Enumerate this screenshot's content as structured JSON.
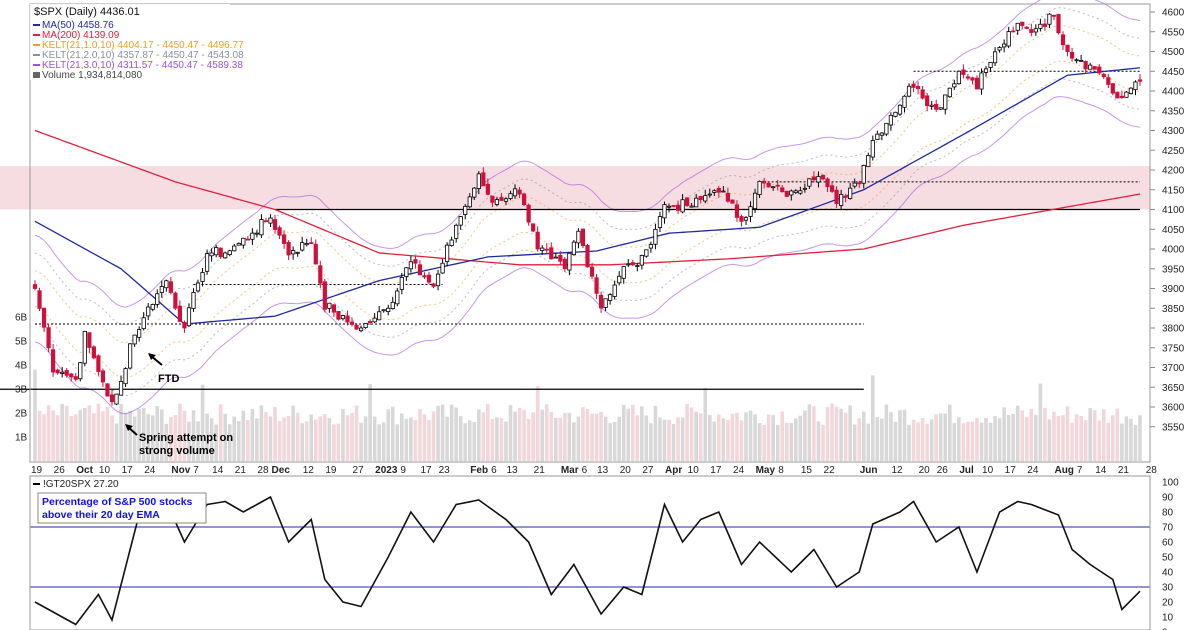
{
  "legend": {
    "symbol": "$SPX (Daily) 4436.01",
    "ma50": "MA(50) 4458.76",
    "ma200": "MA(200) 4139.09",
    "kelt1": "KELT(21,1.0,10) 4404.17 - 4450.47 - 4496.77",
    "kelt2": "KELT(21,2.0,10) 4357.87 - 4450.47 - 4543.08",
    "kelt3": "KELT(21,3.0,10) 4311.57 - 4450.47 - 4589.38",
    "volume": "Volume 1,934,814,080"
  },
  "colors": {
    "ma50": "#1f2a9c",
    "ma200": "#e0203c",
    "kelt1": "#e8a020",
    "kelt2": "#8a8f99",
    "kelt3": "#a050e0",
    "down": "#d0103a",
    "zone": "#f6dde2",
    "indicator_box": "#1010ee"
  },
  "annotations": {
    "ftd": "FTD",
    "spring_1": "Spring attempt on",
    "spring_2": "strong volume"
  },
  "indicator": {
    "legend": "!GT20SPX 27.20",
    "note_1": "Percentage of S&P 500 stocks",
    "note_2": "above their 20 day EMA"
  },
  "chart_data": [
    {
      "type": "candlestick",
      "title": "$SPX (Daily) 4436.01",
      "ylim": [
        3520,
        4620
      ],
      "y_ticks": [
        3550,
        3600,
        3650,
        3700,
        3750,
        3800,
        3850,
        3900,
        3950,
        4000,
        4050,
        4100,
        4150,
        4200,
        4250,
        4300,
        4350,
        4400,
        4450,
        4500,
        4550,
        4600
      ],
      "volume_ticks": [
        "1B",
        "2B",
        "3B",
        "4B",
        "5B",
        "6B"
      ],
      "x_ticks": [
        {
          "d": "2022-09-19",
          "t": "19"
        },
        {
          "d": "2022-09-26",
          "t": "26"
        },
        {
          "d": "2022-10-03",
          "t": "Oct",
          "b": true
        },
        {
          "d": "2022-10-10",
          "t": "10"
        },
        {
          "d": "2022-10-17",
          "t": "17"
        },
        {
          "d": "2022-10-24",
          "t": "24"
        },
        {
          "d": "2022-11-01",
          "t": "Nov",
          "b": true
        },
        {
          "d": "2022-11-07",
          "t": "7"
        },
        {
          "d": "2022-11-14",
          "t": "14"
        },
        {
          "d": "2022-11-21",
          "t": "21"
        },
        {
          "d": "2022-11-28",
          "t": "28"
        },
        {
          "d": "2022-12-01",
          "t": "Dec",
          "b": true
        },
        {
          "d": "2022-12-12",
          "t": "12"
        },
        {
          "d": "2022-12-19",
          "t": "19"
        },
        {
          "d": "2022-12-27",
          "t": "27"
        },
        {
          "d": "2023-01-03",
          "t": "2023",
          "b": true
        },
        {
          "d": "2023-01-09",
          "t": "9"
        },
        {
          "d": "2023-01-17",
          "t": "17"
        },
        {
          "d": "2023-01-23",
          "t": "23"
        },
        {
          "d": "2023-02-01",
          "t": "Feb",
          "b": true
        },
        {
          "d": "2023-02-06",
          "t": "6"
        },
        {
          "d": "2023-02-13",
          "t": "13"
        },
        {
          "d": "2023-02-21",
          "t": "21"
        },
        {
          "d": "2023-03-01",
          "t": "Mar",
          "b": true
        },
        {
          "d": "2023-03-06",
          "t": "6"
        },
        {
          "d": "2023-03-13",
          "t": "13"
        },
        {
          "d": "2023-03-20",
          "t": "20"
        },
        {
          "d": "2023-03-27",
          "t": "27"
        },
        {
          "d": "2023-04-03",
          "t": "Apr",
          "b": true
        },
        {
          "d": "2023-04-10",
          "t": "10"
        },
        {
          "d": "2023-04-17",
          "t": "17"
        },
        {
          "d": "2023-04-24",
          "t": "24"
        },
        {
          "d": "2023-05-01",
          "t": "May",
          "b": true
        },
        {
          "d": "2023-05-08",
          "t": "8"
        },
        {
          "d": "2023-05-15",
          "t": "15"
        },
        {
          "d": "2023-05-22",
          "t": "22"
        },
        {
          "d": "2023-06-01",
          "t": "Jun",
          "b": true
        },
        {
          "d": "2023-06-12",
          "t": "12"
        },
        {
          "d": "2023-06-20",
          "t": "20"
        },
        {
          "d": "2023-06-26",
          "t": "26"
        },
        {
          "d": "2023-07-03",
          "t": "Jul",
          "b": true
        },
        {
          "d": "2023-07-10",
          "t": "10"
        },
        {
          "d": "2023-07-17",
          "t": "17"
        },
        {
          "d": "2023-07-24",
          "t": "24"
        },
        {
          "d": "2023-08-01",
          "t": "Aug",
          "b": true
        },
        {
          "d": "2023-08-07",
          "t": "7"
        },
        {
          "d": "2023-08-14",
          "t": "14"
        },
        {
          "d": "2023-08-21",
          "t": "21"
        },
        {
          "d": "2023-08-28",
          "t": "28"
        }
      ],
      "close_keypoints": [
        [
          "2022-09-19",
          3900
        ],
        [
          "2022-09-23",
          3700
        ],
        [
          "2022-09-30",
          3670
        ],
        [
          "2022-10-04",
          3780
        ],
        [
          "2022-10-12",
          3605
        ],
        [
          "2022-10-14",
          3660
        ],
        [
          "2022-10-18",
          3760
        ],
        [
          "2022-10-25",
          3870
        ],
        [
          "2022-10-28",
          3920
        ],
        [
          "2022-11-03",
          3800
        ],
        [
          "2022-11-10",
          3990
        ],
        [
          "2022-11-16",
          3990
        ],
        [
          "2022-11-23",
          4030
        ],
        [
          "2022-11-30",
          4080
        ],
        [
          "2022-12-06",
          3990
        ],
        [
          "2022-12-13",
          4020
        ],
        [
          "2022-12-16",
          3860
        ],
        [
          "2022-12-22",
          3820
        ],
        [
          "2022-12-28",
          3800
        ],
        [
          "2023-01-05",
          3850
        ],
        [
          "2023-01-12",
          3980
        ],
        [
          "2023-01-19",
          3900
        ],
        [
          "2023-01-26",
          4060
        ],
        [
          "2023-02-02",
          4180
        ],
        [
          "2023-02-07",
          4120
        ],
        [
          "2023-02-15",
          4150
        ],
        [
          "2023-02-21",
          4000
        ],
        [
          "2023-03-01",
          3950
        ],
        [
          "2023-03-06",
          4045
        ],
        [
          "2023-03-13",
          3855
        ],
        [
          "2023-03-20",
          3950
        ],
        [
          "2023-03-24",
          3970
        ],
        [
          "2023-03-31",
          4110
        ],
        [
          "2023-04-10",
          4110
        ],
        [
          "2023-04-18",
          4155
        ],
        [
          "2023-04-25",
          4070
        ],
        [
          "2023-05-01",
          4165
        ],
        [
          "2023-05-10",
          4137
        ],
        [
          "2023-05-18",
          4198
        ],
        [
          "2023-05-24",
          4115
        ],
        [
          "2023-05-31",
          4180
        ],
        [
          "2023-06-05",
          4275
        ],
        [
          "2023-06-13",
          4370
        ],
        [
          "2023-06-16",
          4420
        ],
        [
          "2023-06-23",
          4350
        ],
        [
          "2023-06-30",
          4450
        ],
        [
          "2023-07-06",
          4420
        ],
        [
          "2023-07-13",
          4510
        ],
        [
          "2023-07-19",
          4565
        ],
        [
          "2023-07-24",
          4555
        ],
        [
          "2023-07-31",
          4590
        ],
        [
          "2023-08-03",
          4500
        ],
        [
          "2023-08-09",
          4470
        ],
        [
          "2023-08-15",
          4440
        ],
        [
          "2023-08-18",
          4370
        ],
        [
          "2023-08-25",
          4436.01
        ]
      ],
      "ma50_keypoints": [
        [
          "2022-09-19",
          4070
        ],
        [
          "2022-10-14",
          3950
        ],
        [
          "2022-11-03",
          3810
        ],
        [
          "2022-12-01",
          3830
        ],
        [
          "2023-01-03",
          3920
        ],
        [
          "2023-02-06",
          3980
        ],
        [
          "2023-03-10",
          3995
        ],
        [
          "2023-04-03",
          4040
        ],
        [
          "2023-05-01",
          4055
        ],
        [
          "2023-06-01",
          4150
        ],
        [
          "2023-07-03",
          4290
        ],
        [
          "2023-08-03",
          4440
        ],
        [
          "2023-08-25",
          4458.76
        ]
      ],
      "ma200_keypoints": [
        [
          "2022-09-19",
          4300
        ],
        [
          "2022-11-01",
          4170
        ],
        [
          "2022-12-01",
          4100
        ],
        [
          "2023-01-03",
          3990
        ],
        [
          "2023-02-15",
          3960
        ],
        [
          "2023-03-15",
          3960
        ],
        [
          "2023-04-20",
          3975
        ],
        [
          "2023-06-01",
          4000
        ],
        [
          "2023-07-03",
          4060
        ],
        [
          "2023-08-25",
          4139.09
        ]
      ],
      "levels": [
        {
          "price": 4100,
          "style": "solid",
          "from": "2022-12-01"
        },
        {
          "price": 3645,
          "style": "solid",
          "from": "2022-09-19",
          "to": "2023-06-01"
        },
        {
          "price": 3810,
          "style": "dotted",
          "from": "2022-09-19",
          "to": "2023-06-01"
        },
        {
          "price": 3910,
          "style": "dotted",
          "from": "2022-11-07",
          "to": "2023-01-23"
        },
        {
          "price": 4450,
          "style": "dotted",
          "from": "2023-06-16"
        },
        {
          "price": 4170,
          "style": "dotted",
          "from": "2023-05-01"
        }
      ],
      "resistance_zone": [
        4100,
        4210
      ]
    },
    {
      "type": "line",
      "title": "!GT20SPX 27.20",
      "ylim": [
        0,
        100
      ],
      "y_ticks": [
        0,
        10,
        20,
        30,
        40,
        50,
        60,
        70,
        80,
        90,
        100
      ],
      "hlines": [
        30,
        70
      ],
      "keypoints": [
        [
          "2022-09-19",
          20
        ],
        [
          "2022-09-30",
          5
        ],
        [
          "2022-10-07",
          25
        ],
        [
          "2022-10-12",
          8
        ],
        [
          "2022-10-18",
          55
        ],
        [
          "2022-10-21",
          90
        ],
        [
          "2022-10-28",
          87
        ],
        [
          "2022-11-03",
          60
        ],
        [
          "2022-11-10",
          85
        ],
        [
          "2022-11-16",
          87
        ],
        [
          "2022-11-22",
          80
        ],
        [
          "2022-11-30",
          90
        ],
        [
          "2022-12-06",
          60
        ],
        [
          "2022-12-13",
          75
        ],
        [
          "2022-12-16",
          35
        ],
        [
          "2022-12-22",
          20
        ],
        [
          "2022-12-28",
          17
        ],
        [
          "2023-01-05",
          50
        ],
        [
          "2023-01-12",
          80
        ],
        [
          "2023-01-19",
          60
        ],
        [
          "2023-01-26",
          85
        ],
        [
          "2023-02-02",
          88
        ],
        [
          "2023-02-10",
          75
        ],
        [
          "2023-02-17",
          60
        ],
        [
          "2023-02-24",
          25
        ],
        [
          "2023-03-03",
          45
        ],
        [
          "2023-03-13",
          12
        ],
        [
          "2023-03-20",
          30
        ],
        [
          "2023-03-24",
          25
        ],
        [
          "2023-03-31",
          85
        ],
        [
          "2023-04-06",
          60
        ],
        [
          "2023-04-12",
          75
        ],
        [
          "2023-04-18",
          80
        ],
        [
          "2023-04-25",
          45
        ],
        [
          "2023-05-01",
          60
        ],
        [
          "2023-05-10",
          40
        ],
        [
          "2023-05-17",
          55
        ],
        [
          "2023-05-24",
          30
        ],
        [
          "2023-05-31",
          40
        ],
        [
          "2023-06-05",
          72
        ],
        [
          "2023-06-13",
          80
        ],
        [
          "2023-06-16",
          87
        ],
        [
          "2023-06-23",
          60
        ],
        [
          "2023-06-30",
          70
        ],
        [
          "2023-07-06",
          40
        ],
        [
          "2023-07-13",
          80
        ],
        [
          "2023-07-19",
          87
        ],
        [
          "2023-07-24",
          85
        ],
        [
          "2023-08-01",
          78
        ],
        [
          "2023-08-04",
          55
        ],
        [
          "2023-08-10",
          45
        ],
        [
          "2023-08-17",
          35
        ],
        [
          "2023-08-21",
          15
        ],
        [
          "2023-08-25",
          27.2
        ]
      ]
    }
  ]
}
